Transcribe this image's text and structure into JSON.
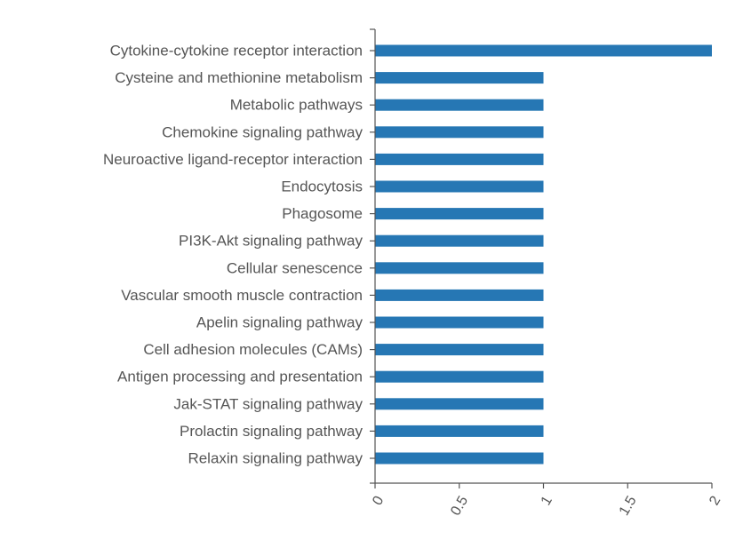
{
  "chart_data": {
    "type": "bar",
    "orientation": "horizontal",
    "title": "",
    "xlabel": "",
    "ylabel": "",
    "categories": [
      "Cytokine-cytokine receptor interaction",
      "Cysteine and methionine metabolism",
      "Metabolic pathways",
      "Chemokine signaling pathway",
      "Neuroactive ligand-receptor interaction",
      "Endocytosis",
      "Phagosome",
      "PI3K-Akt signaling pathway",
      "Cellular senescence",
      "Vascular smooth muscle contraction",
      "Apelin signaling pathway",
      "Cell adhesion molecules (CAMs)",
      "Antigen processing and presentation",
      "Jak-STAT signaling pathway",
      "Prolactin signaling pathway",
      "Relaxin signaling pathway"
    ],
    "values": [
      2,
      1,
      1,
      1,
      1,
      1,
      1,
      1,
      1,
      1,
      1,
      1,
      1,
      1,
      1,
      1
    ],
    "xlim": [
      0,
      2
    ],
    "x_ticks": [
      "0",
      "0.5",
      "1",
      "1.5",
      "2"
    ],
    "x_tick_values": [
      0,
      0.5,
      1,
      1.5,
      2
    ],
    "grid": false,
    "bar_color": "#2677b4",
    "axis_color": "#555555",
    "text_color": "#555555"
  }
}
